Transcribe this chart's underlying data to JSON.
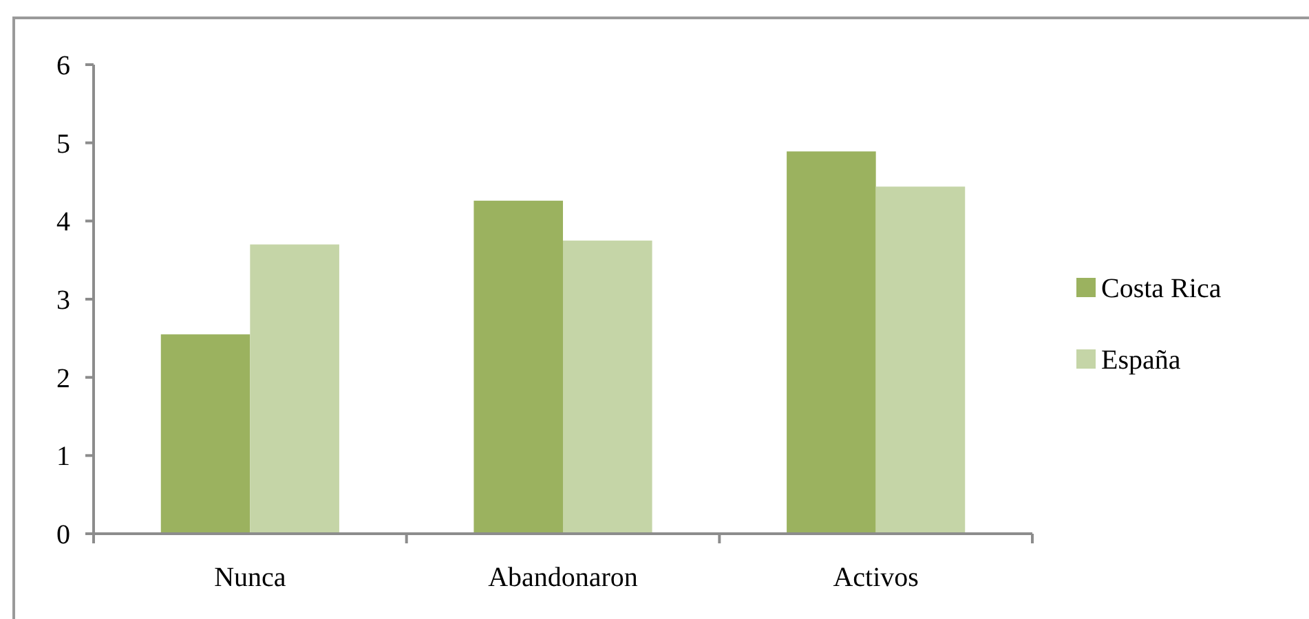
{
  "chart_data": {
    "type": "bar",
    "categories": [
      "Nunca",
      "Abandonaron",
      "Activos"
    ],
    "series": [
      {
        "name": "Costa Rica",
        "color": "#9bb25f",
        "values": [
          2.55,
          4.26,
          4.89
        ]
      },
      {
        "name": "España",
        "color": "#c5d5a7",
        "values": [
          3.7,
          3.75,
          4.44
        ]
      }
    ],
    "ylim": [
      0,
      6
    ],
    "yticks": [
      0,
      1,
      2,
      3,
      4,
      5,
      6
    ],
    "grid": false,
    "legend": "right"
  }
}
